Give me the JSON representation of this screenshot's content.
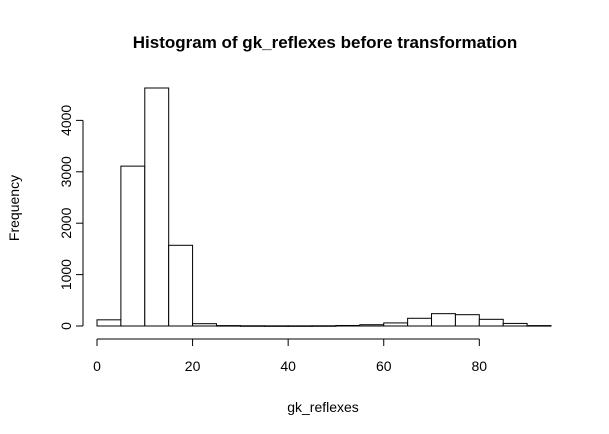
{
  "chart_data": {
    "type": "bar",
    "title": "Histogram of gk_reflexes before transformation",
    "xlabel": "gk_reflexes",
    "ylabel": "Frequency",
    "bin_edges": [
      0,
      5,
      10,
      15,
      20,
      25,
      30,
      35,
      40,
      45,
      50,
      55,
      60,
      65,
      70,
      75,
      80,
      85,
      90,
      95
    ],
    "values": [
      120,
      3110,
      4630,
      1570,
      45,
      8,
      4,
      3,
      3,
      4,
      10,
      25,
      60,
      150,
      240,
      220,
      130,
      50,
      8
    ],
    "xlim": [
      0,
      95
    ],
    "ylim": [
      0,
      4630
    ],
    "x_ticks": [
      0,
      20,
      40,
      60,
      80
    ],
    "y_ticks": [
      0,
      1000,
      2000,
      3000,
      4000
    ],
    "grid": false
  }
}
